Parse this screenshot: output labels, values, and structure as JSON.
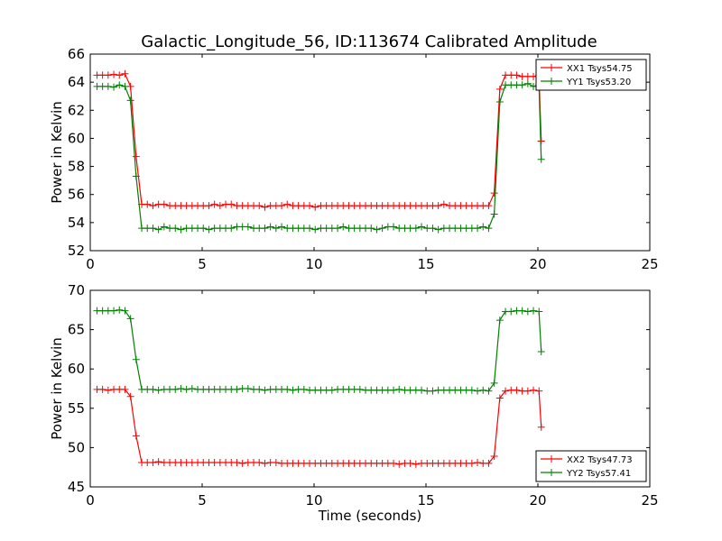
{
  "chart_data": [
    {
      "type": "line",
      "title": "Galactic_Longitude_56, ID:113674 Calibrated Amplitude",
      "xlabel": "",
      "ylabel": "Power in Kelvin",
      "xlim": [
        0,
        25
      ],
      "ylim": [
        52,
        66
      ],
      "xticks": [
        0,
        5,
        10,
        15,
        20,
        25
      ],
      "yticks": [
        52,
        54,
        56,
        58,
        60,
        62,
        64,
        66
      ],
      "grid": false,
      "legend_position": "top-right",
      "x": [
        0.3,
        0.55,
        0.8,
        1.05,
        1.3,
        1.55,
        1.8,
        2.05,
        2.3,
        2.55,
        2.8,
        3.05,
        3.3,
        3.55,
        3.8,
        4.05,
        4.3,
        4.55,
        4.8,
        5.05,
        5.3,
        5.55,
        5.8,
        6.05,
        6.3,
        6.55,
        6.8,
        7.05,
        7.3,
        7.55,
        7.8,
        8.05,
        8.3,
        8.55,
        8.8,
        9.05,
        9.3,
        9.55,
        9.8,
        10.05,
        10.3,
        10.55,
        10.8,
        11.05,
        11.3,
        11.55,
        11.8,
        12.05,
        12.3,
        12.55,
        12.8,
        13.05,
        13.3,
        13.55,
        13.8,
        14.05,
        14.3,
        14.55,
        14.8,
        15.05,
        15.3,
        15.55,
        15.8,
        16.05,
        16.3,
        16.55,
        16.8,
        17.05,
        17.3,
        17.55,
        17.8,
        18.05,
        18.3,
        18.55,
        18.8,
        19.05,
        19.3,
        19.55,
        19.8,
        20.05,
        20.15
      ],
      "series": [
        {
          "name": "XX1 Tsys54.75",
          "color": "#ff0000",
          "values": [
            64.5,
            64.5,
            64.5,
            64.55,
            64.5,
            64.6,
            63.7,
            58.7,
            55.3,
            55.3,
            55.2,
            55.3,
            55.3,
            55.2,
            55.2,
            55.2,
            55.2,
            55.2,
            55.2,
            55.2,
            55.2,
            55.3,
            55.2,
            55.3,
            55.3,
            55.2,
            55.2,
            55.2,
            55.2,
            55.2,
            55.1,
            55.2,
            55.2,
            55.2,
            55.3,
            55.2,
            55.2,
            55.2,
            55.2,
            55.1,
            55.2,
            55.2,
            55.2,
            55.2,
            55.2,
            55.2,
            55.2,
            55.2,
            55.2,
            55.2,
            55.2,
            55.2,
            55.2,
            55.2,
            55.2,
            55.2,
            55.2,
            55.2,
            55.2,
            55.2,
            55.2,
            55.2,
            55.3,
            55.2,
            55.2,
            55.2,
            55.2,
            55.2,
            55.2,
            55.2,
            55.2,
            56.1,
            63.5,
            64.5,
            64.5,
            64.5,
            64.4,
            64.4,
            64.4,
            64.5,
            59.8
          ]
        },
        {
          "name": "YY1 Tsys53.20",
          "color": "#008000",
          "values": [
            63.7,
            63.7,
            63.7,
            63.65,
            63.8,
            63.7,
            62.7,
            57.3,
            53.6,
            53.6,
            53.6,
            53.5,
            53.7,
            53.6,
            53.6,
            53.5,
            53.6,
            53.6,
            53.6,
            53.6,
            53.5,
            53.6,
            53.6,
            53.6,
            53.6,
            53.7,
            53.7,
            53.7,
            53.6,
            53.6,
            53.6,
            53.7,
            53.6,
            53.7,
            53.6,
            53.6,
            53.6,
            53.6,
            53.6,
            53.5,
            53.6,
            53.6,
            53.6,
            53.6,
            53.7,
            53.6,
            53.6,
            53.6,
            53.6,
            53.6,
            53.5,
            53.6,
            53.7,
            53.7,
            53.6,
            53.6,
            53.6,
            53.6,
            53.7,
            53.6,
            53.6,
            53.5,
            53.6,
            53.6,
            53.6,
            53.6,
            53.6,
            53.6,
            53.6,
            53.7,
            53.6,
            54.6,
            62.6,
            63.8,
            63.8,
            63.8,
            63.8,
            63.9,
            63.7,
            63.8,
            58.5
          ]
        }
      ]
    },
    {
      "type": "line",
      "title": "",
      "xlabel": "Time (seconds)",
      "ylabel": "Power in Kelvin",
      "xlim": [
        0,
        25
      ],
      "ylim": [
        45,
        70
      ],
      "xticks": [
        0,
        5,
        10,
        15,
        20,
        25
      ],
      "yticks": [
        45,
        50,
        55,
        60,
        65,
        70
      ],
      "grid": false,
      "legend_position": "bottom-right",
      "x": [
        0.3,
        0.55,
        0.8,
        1.05,
        1.3,
        1.55,
        1.8,
        2.05,
        2.3,
        2.55,
        2.8,
        3.05,
        3.3,
        3.55,
        3.8,
        4.05,
        4.3,
        4.55,
        4.8,
        5.05,
        5.3,
        5.55,
        5.8,
        6.05,
        6.3,
        6.55,
        6.8,
        7.05,
        7.3,
        7.55,
        7.8,
        8.05,
        8.3,
        8.55,
        8.8,
        9.05,
        9.3,
        9.55,
        9.8,
        10.05,
        10.3,
        10.55,
        10.8,
        11.05,
        11.3,
        11.55,
        11.8,
        12.05,
        12.3,
        12.55,
        12.8,
        13.05,
        13.3,
        13.55,
        13.8,
        14.05,
        14.3,
        14.55,
        14.8,
        15.05,
        15.3,
        15.55,
        15.8,
        16.05,
        16.3,
        16.55,
        16.8,
        17.05,
        17.3,
        17.55,
        17.8,
        18.05,
        18.3,
        18.55,
        18.8,
        19.05,
        19.3,
        19.55,
        19.8,
        20.05,
        20.15
      ],
      "series": [
        {
          "name": "XX2 Tsys47.73",
          "color": "#ff0000",
          "values": [
            57.4,
            57.4,
            57.3,
            57.4,
            57.4,
            57.4,
            56.5,
            51.5,
            48.1,
            48.1,
            48.1,
            48.2,
            48.1,
            48.1,
            48.1,
            48.1,
            48.1,
            48.1,
            48.1,
            48.1,
            48.1,
            48.1,
            48.1,
            48.1,
            48.1,
            48.1,
            48.0,
            48.1,
            48.1,
            48.1,
            48.0,
            48.1,
            48.1,
            48.0,
            48.0,
            48.0,
            48.0,
            48.0,
            48.0,
            48.0,
            48.0,
            48.0,
            48.0,
            48.0,
            48.0,
            48.0,
            48.0,
            48.0,
            48.0,
            48.0,
            48.0,
            48.0,
            48.0,
            48.0,
            47.9,
            48.0,
            48.0,
            47.9,
            48.0,
            48.0,
            48.0,
            48.0,
            48.0,
            48.0,
            48.0,
            48.0,
            48.0,
            48.0,
            48.1,
            48.0,
            48.0,
            48.9,
            56.3,
            57.2,
            57.3,
            57.3,
            57.2,
            57.2,
            57.3,
            57.2,
            52.6
          ]
        },
        {
          "name": "YY2 Tsys57.41",
          "color": "#008000",
          "values": [
            67.4,
            67.4,
            67.4,
            67.4,
            67.5,
            67.4,
            66.4,
            61.2,
            57.4,
            57.4,
            57.4,
            57.3,
            57.4,
            57.4,
            57.4,
            57.5,
            57.4,
            57.5,
            57.4,
            57.4,
            57.4,
            57.4,
            57.4,
            57.4,
            57.4,
            57.4,
            57.5,
            57.5,
            57.4,
            57.4,
            57.3,
            57.4,
            57.4,
            57.4,
            57.4,
            57.3,
            57.4,
            57.4,
            57.3,
            57.3,
            57.3,
            57.3,
            57.3,
            57.4,
            57.4,
            57.4,
            57.4,
            57.4,
            57.3,
            57.3,
            57.3,
            57.3,
            57.3,
            57.3,
            57.4,
            57.3,
            57.3,
            57.3,
            57.3,
            57.2,
            57.2,
            57.3,
            57.3,
            57.3,
            57.3,
            57.3,
            57.3,
            57.3,
            57.2,
            57.3,
            57.2,
            58.2,
            66.2,
            67.3,
            67.3,
            67.4,
            67.4,
            67.3,
            67.4,
            67.3,
            62.2
          ]
        }
      ]
    }
  ]
}
